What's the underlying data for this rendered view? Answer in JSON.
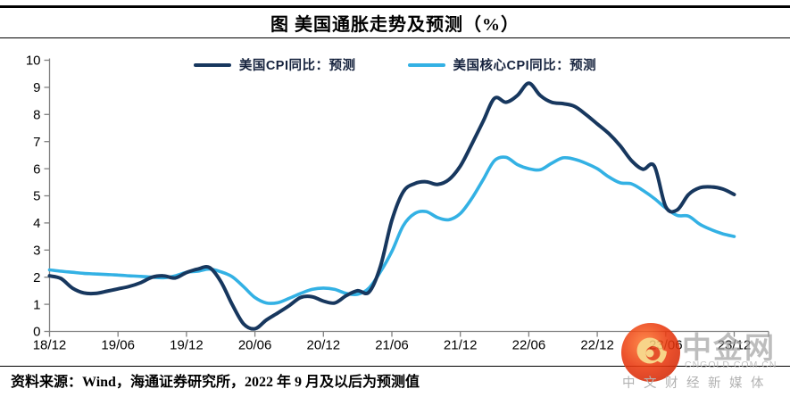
{
  "page": {
    "title": "图 美国通胀走势及预测（%）",
    "source_note": "资料来源：Wind，海通证券研究所，2022 年 9 月及以后为预测值"
  },
  "watermark": {
    "name": "中金网",
    "domain": "CNGOLD.COM.CN",
    "tagline": "中文财经新媒体"
  },
  "chart_data": {
    "type": "line",
    "title": "图 美国通胀走势及预测（%）",
    "x_start": "2018/12",
    "x_end": "2023/12",
    "x_frequency": "monthly",
    "x_tick_labels": [
      "18/12",
      "19/06",
      "19/12",
      "20/06",
      "20/12",
      "21/06",
      "21/12",
      "22/06",
      "22/12",
      "23/06",
      "23/12"
    ],
    "x_tick_every_months": 6,
    "ylim": [
      0,
      10
    ],
    "y_ticks": [
      0,
      1,
      2,
      3,
      4,
      5,
      6,
      7,
      8,
      9,
      10
    ],
    "grid": false,
    "legend_position": "top-center",
    "axis_color": "#808080",
    "series": [
      {
        "name": "美国CPI同比：预测",
        "color": "#17375E",
        "values": [
          2.05,
          1.95,
          1.6,
          1.42,
          1.4,
          1.48,
          1.57,
          1.66,
          1.8,
          2.0,
          2.05,
          1.97,
          2.17,
          2.3,
          2.36,
          1.85,
          1.0,
          0.28,
          0.1,
          0.42,
          0.68,
          0.95,
          1.25,
          1.28,
          1.12,
          1.05,
          1.32,
          1.5,
          1.45,
          2.4,
          4.1,
          5.15,
          5.45,
          5.52,
          5.42,
          5.6,
          6.1,
          6.9,
          7.75,
          8.6,
          8.45,
          8.7,
          9.15,
          8.7,
          8.45,
          8.4,
          8.3,
          8.0,
          7.65,
          7.3,
          6.85,
          6.3,
          5.98,
          6.1,
          4.6,
          4.48,
          5.05,
          5.3,
          5.33,
          5.25,
          5.05
        ]
      },
      {
        "name": "美国核心CPI同比：预测",
        "color": "#33B1E4",
        "values": [
          2.27,
          2.22,
          2.18,
          2.14,
          2.12,
          2.1,
          2.08,
          2.05,
          2.03,
          2.0,
          1.98,
          2.05,
          2.18,
          2.22,
          2.3,
          2.2,
          2.02,
          1.65,
          1.25,
          1.05,
          1.06,
          1.22,
          1.4,
          1.55,
          1.6,
          1.55,
          1.4,
          1.37,
          1.6,
          2.2,
          2.95,
          3.9,
          4.35,
          4.42,
          4.2,
          4.12,
          4.35,
          4.9,
          5.6,
          6.3,
          6.42,
          6.15,
          6.0,
          5.96,
          6.2,
          6.4,
          6.35,
          6.2,
          6.0,
          5.7,
          5.48,
          5.44,
          5.2,
          4.9,
          4.55,
          4.28,
          4.25,
          3.95,
          3.75,
          3.6,
          3.5
        ]
      }
    ]
  }
}
